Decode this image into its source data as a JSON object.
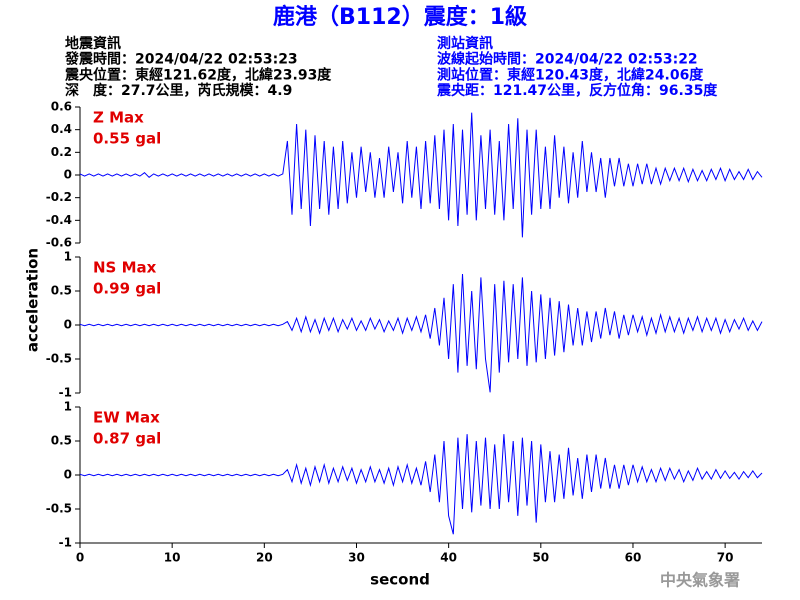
{
  "chart_data": {
    "type": "line",
    "title": "鹿港（B112）震度：1級",
    "quake_info": [
      "地震資訊",
      "發震時間：2024/04/22 02:53:23",
      "震央位置：東經121.62度，北緯23.93度",
      "深　度：27.7公里，芮氏規模：4.9"
    ],
    "station_info": [
      "測站資訊",
      "波線起始時間：2024/04/22 02:53:22",
      "測站位置：東經120.43度，北緯24.06度",
      "震央距：121.47公里，反方位角：96.35度"
    ],
    "xlabel": "second",
    "ylabel": "acceleration",
    "credit": "中央氣象署",
    "color": "#0000ff",
    "xlim": [
      0,
      74
    ],
    "xticks": [
      0,
      10,
      20,
      30,
      40,
      50,
      60,
      70
    ],
    "x": [
      0,
      0.5,
      1,
      1.5,
      2,
      2.5,
      3,
      3.5,
      4,
      4.5,
      5,
      5.5,
      6,
      6.5,
      7,
      7.5,
      8,
      8.5,
      9,
      9.5,
      10,
      10.5,
      11,
      11.5,
      12,
      12.5,
      13,
      13.5,
      14,
      14.5,
      15,
      15.5,
      16,
      16.5,
      17,
      17.5,
      18,
      18.5,
      19,
      19.5,
      20,
      20.5,
      21,
      21.5,
      22,
      22.5,
      23,
      23.5,
      24,
      24.5,
      25,
      25.5,
      26,
      26.5,
      27,
      27.5,
      28,
      28.5,
      29,
      29.5,
      30,
      30.5,
      31,
      31.5,
      32,
      32.5,
      33,
      33.5,
      34,
      34.5,
      35,
      35.5,
      36,
      36.5,
      37,
      37.5,
      38,
      38.5,
      39,
      39.5,
      40,
      40.5,
      41,
      41.5,
      42,
      42.5,
      43,
      43.5,
      44,
      44.5,
      45,
      45.5,
      46,
      46.5,
      47,
      47.5,
      48,
      48.5,
      49,
      49.5,
      50,
      50.5,
      51,
      51.5,
      52,
      52.5,
      53,
      53.5,
      54,
      54.5,
      55,
      55.5,
      56,
      56.5,
      57,
      57.5,
      58,
      58.5,
      59,
      59.5,
      60,
      60.5,
      61,
      61.5,
      62,
      62.5,
      63,
      63.5,
      64,
      64.5,
      65,
      65.5,
      66,
      66.5,
      67,
      67.5,
      68,
      68.5,
      69,
      69.5,
      70,
      70.5,
      71,
      71.5,
      72,
      72.5,
      73,
      73.5,
      74
    ],
    "panels": [
      {
        "name": "Z Max",
        "max_label": "0.55 gal",
        "ylim": [
          -0.6,
          0.6
        ],
        "yticks": [
          -0.6,
          -0.4,
          -0.2,
          0,
          0.2,
          0.4,
          0.6
        ],
        "values": [
          0.01,
          -0.01,
          0.01,
          -0.01,
          0.01,
          -0.01,
          0.01,
          -0.01,
          0.01,
          -0.01,
          0.01,
          -0.01,
          0.01,
          -0.01,
          0.02,
          -0.02,
          0.01,
          -0.01,
          0.01,
          -0.01,
          0.01,
          -0.01,
          0.01,
          -0.01,
          0.01,
          -0.01,
          0.01,
          -0.01,
          0.01,
          -0.01,
          0.01,
          -0.01,
          0.01,
          -0.01,
          0.01,
          -0.01,
          0.01,
          -0.01,
          0.01,
          -0.01,
          0.01,
          -0.01,
          0.01,
          -0.01,
          0.01,
          0.3,
          -0.35,
          0.45,
          -0.3,
          0.4,
          -0.45,
          0.35,
          -0.3,
          0.3,
          -0.35,
          0.25,
          -0.3,
          0.3,
          -0.25,
          0.2,
          -0.2,
          0.25,
          -0.15,
          0.2,
          -0.2,
          0.15,
          -0.2,
          0.25,
          -0.15,
          0.2,
          -0.25,
          0.3,
          -0.2,
          0.25,
          -0.3,
          0.3,
          -0.25,
          0.35,
          -0.3,
          0.4,
          -0.4,
          0.45,
          -0.45,
          0.4,
          -0.35,
          0.55,
          -0.4,
          0.35,
          -0.3,
          0.4,
          -0.35,
          0.3,
          -0.4,
          0.45,
          -0.3,
          0.5,
          -0.55,
          0.4,
          -0.35,
          0.4,
          -0.3,
          0.25,
          -0.3,
          0.35,
          -0.2,
          0.25,
          -0.25,
          0.2,
          -0.2,
          0.3,
          -0.15,
          0.2,
          -0.15,
          0.15,
          -0.2,
          0.15,
          -0.1,
          0.15,
          -0.1,
          0.1,
          -0.1,
          0.1,
          -0.08,
          0.1,
          -0.08,
          0.06,
          -0.08,
          0.06,
          -0.05,
          0.06,
          -0.05,
          0.06,
          -0.06,
          0.05,
          -0.05,
          0.04,
          -0.05,
          0.05,
          -0.04,
          0.06,
          -0.05,
          0.05,
          -0.04,
          0.03,
          -0.04,
          0.05,
          -0.04,
          0.03,
          -0.02
        ]
      },
      {
        "name": "NS Max",
        "max_label": "0.99 gal",
        "ylim": [
          -1,
          1
        ],
        "yticks": [
          -1,
          -0.5,
          0,
          0.5,
          1
        ],
        "values": [
          0.01,
          -0.01,
          0.01,
          -0.01,
          0.01,
          -0.01,
          0.01,
          -0.01,
          0.01,
          -0.01,
          0.01,
          -0.01,
          0.01,
          -0.01,
          0.01,
          -0.01,
          0.01,
          -0.01,
          0.01,
          -0.01,
          0.01,
          -0.01,
          0.01,
          -0.01,
          0.01,
          -0.01,
          0.01,
          -0.01,
          0.01,
          -0.01,
          0.01,
          -0.01,
          0.01,
          -0.01,
          0.01,
          -0.01,
          0.01,
          -0.01,
          0.01,
          -0.01,
          0.01,
          -0.01,
          0.01,
          -0.01,
          0.01,
          0.05,
          -0.08,
          0.1,
          -0.1,
          0.12,
          -0.1,
          0.08,
          -0.12,
          0.1,
          -0.08,
          0.1,
          -0.1,
          0.08,
          -0.06,
          0.1,
          -0.08,
          0.06,
          -0.08,
          0.1,
          -0.06,
          0.08,
          -0.1,
          0.06,
          -0.08,
          0.1,
          -0.12,
          0.1,
          -0.08,
          0.12,
          -0.1,
          0.15,
          -0.2,
          0.25,
          -0.3,
          0.4,
          -0.5,
          0.6,
          -0.7,
          0.75,
          -0.6,
          0.5,
          -0.65,
          0.7,
          -0.5,
          -0.99,
          0.6,
          -0.7,
          0.65,
          -0.55,
          0.6,
          -0.5,
          0.7,
          -0.6,
          0.5,
          -0.55,
          0.45,
          -0.5,
          0.4,
          -0.45,
          0.35,
          -0.4,
          0.3,
          -0.3,
          0.25,
          -0.3,
          0.2,
          -0.25,
          0.2,
          -0.2,
          0.25,
          -0.15,
          0.2,
          -0.2,
          0.15,
          -0.15,
          0.15,
          -0.1,
          0.12,
          -0.15,
          0.1,
          -0.12,
          0.15,
          -0.1,
          0.12,
          -0.1,
          0.1,
          -0.12,
          0.1,
          -0.08,
          0.12,
          -0.1,
          0.1,
          -0.08,
          0.1,
          -0.12,
          0.08,
          -0.1,
          0.08,
          -0.06,
          0.1,
          -0.08,
          0.06,
          -0.08,
          0.05
        ]
      },
      {
        "name": "EW Max",
        "max_label": "0.87 gal",
        "ylim": [
          -1,
          1
        ],
        "yticks": [
          -1,
          -0.5,
          0,
          0.5,
          1
        ],
        "values": [
          0.01,
          -0.01,
          0.01,
          -0.01,
          0.01,
          -0.01,
          0.01,
          -0.01,
          0.01,
          -0.01,
          0.01,
          -0.01,
          0.01,
          -0.01,
          0.01,
          -0.01,
          0.01,
          -0.01,
          0.01,
          -0.01,
          0.01,
          -0.01,
          0.01,
          -0.01,
          0.01,
          -0.01,
          0.01,
          -0.01,
          0.01,
          -0.01,
          0.01,
          -0.01,
          0.01,
          -0.01,
          0.01,
          -0.01,
          0.01,
          -0.01,
          0.01,
          -0.01,
          0.01,
          -0.01,
          0.01,
          -0.01,
          0.01,
          0.08,
          -0.1,
          0.15,
          -0.12,
          0.1,
          -0.15,
          0.12,
          -0.1,
          0.15,
          -0.12,
          0.1,
          -0.1,
          0.12,
          -0.08,
          0.1,
          -0.12,
          0.08,
          -0.1,
          0.12,
          -0.1,
          0.08,
          -0.12,
          0.1,
          -0.15,
          0.12,
          -0.1,
          0.15,
          -0.12,
          0.1,
          -0.15,
          0.2,
          -0.25,
          0.3,
          -0.4,
          0.5,
          -0.6,
          -0.87,
          0.55,
          -0.5,
          0.6,
          -0.55,
          0.5,
          -0.45,
          0.55,
          -0.5,
          0.45,
          -0.5,
          0.6,
          -0.4,
          0.5,
          -0.6,
          0.55,
          -0.45,
          0.5,
          -0.7,
          0.45,
          -0.4,
          0.35,
          -0.4,
          0.3,
          -0.35,
          0.4,
          -0.3,
          0.25,
          -0.35,
          0.3,
          -0.25,
          0.3,
          -0.2,
          0.25,
          -0.2,
          0.15,
          -0.2,
          0.15,
          -0.15,
          0.15,
          -0.1,
          0.12,
          -0.1,
          0.08,
          -0.1,
          0.1,
          -0.08,
          0.1,
          -0.06,
          0.08,
          -0.1,
          0.06,
          -0.08,
          0.1,
          -0.06,
          0.05,
          -0.06,
          0.08,
          -0.05,
          0.06,
          -0.05,
          0.04,
          -0.06,
          0.05,
          -0.04,
          0.06,
          -0.04,
          0.03
        ]
      }
    ]
  }
}
